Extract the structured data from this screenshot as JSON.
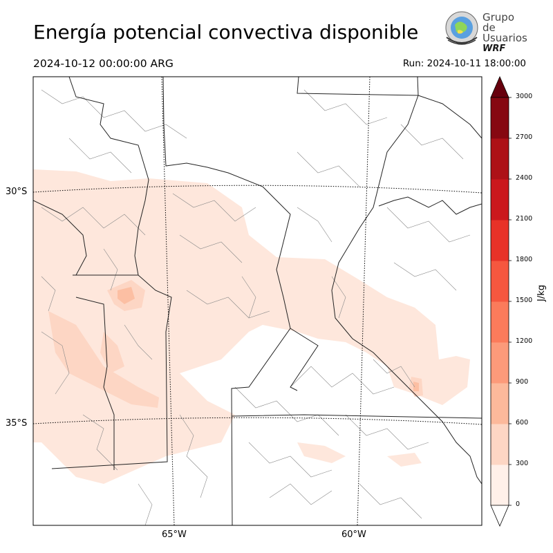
{
  "header": {
    "title": "Energía potencial convectiva disponible",
    "valid_time": "2024-10-12 00:00:00 ARG",
    "run_time": "Run: 2024-10-11 18:00:00"
  },
  "logo": {
    "line1": "Grupo de",
    "line2": "Usuarios",
    "line3": "WRF"
  },
  "map": {
    "lat_labels": [
      "30°S",
      "35°S"
    ],
    "lon_labels": [
      "65°W",
      "60°W"
    ]
  },
  "colorbar": {
    "unit": "J/kg",
    "ticks": [
      "0",
      "300",
      "600",
      "900",
      "1200",
      "1500",
      "1800",
      "2100",
      "2400",
      "2700",
      "3000"
    ],
    "colors": [
      "#fff0e9",
      "#fdd6c4",
      "#fcb99b",
      "#fc9a7a",
      "#fb7b5b",
      "#f6573f",
      "#e83228",
      "#cb181d",
      "#ad1117",
      "#860811"
    ],
    "over_color": "#67000d",
    "under_color": "#ffffff"
  }
}
